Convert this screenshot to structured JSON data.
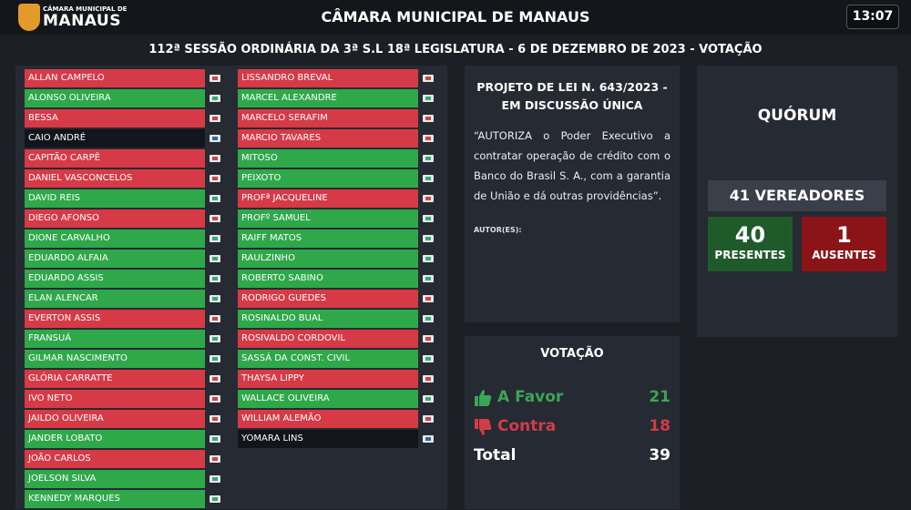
{
  "header": {
    "logo_small": "CÂMARA MUNICIPAL DE",
    "logo_big": "MANAUS",
    "title": "CÂMARA MUNICIPAL DE MANAUS",
    "clock": "13:07"
  },
  "session": {
    "title": "112ª SESSÃO ORDINÁRIA DA 3ª S.L 18ª LEGISLATURA - 6 DE DEZEMBRO DE 2023 - VOTAÇÃO"
  },
  "colors": {
    "red": "#d63a47",
    "green": "#2fa84a",
    "dark": "#12151b"
  },
  "councilors_left": [
    {
      "name": "ALLAN CAMPELO",
      "status": "red"
    },
    {
      "name": "ALONSO OLIVEIRA",
      "status": "green"
    },
    {
      "name": "BESSA",
      "status": "red"
    },
    {
      "name": "CAIO ANDRÉ",
      "status": "dark"
    },
    {
      "name": "CAPITÃO CARPÊ",
      "status": "red"
    },
    {
      "name": "DANIEL VASCONCELOS",
      "status": "red"
    },
    {
      "name": "DAVID REIS",
      "status": "green"
    },
    {
      "name": "DIEGO AFONSO",
      "status": "red"
    },
    {
      "name": "DIONE CARVALHO",
      "status": "green"
    },
    {
      "name": "EDUARDO ALFAIA",
      "status": "green"
    },
    {
      "name": "EDUARDO ASSIS",
      "status": "green"
    },
    {
      "name": "ELAN ALENCAR",
      "status": "green"
    },
    {
      "name": "EVERTON ASSIS",
      "status": "red"
    },
    {
      "name": "FRANSUÁ",
      "status": "green"
    },
    {
      "name": "GILMAR NASCIMENTO",
      "status": "green"
    },
    {
      "name": "GLÓRIA CARRATTE",
      "status": "red"
    },
    {
      "name": "IVO NETO",
      "status": "red"
    },
    {
      "name": "JAILDO OLIVEIRA",
      "status": "red"
    },
    {
      "name": "JANDER LOBATO",
      "status": "green"
    },
    {
      "name": "JOÃO CARLOS",
      "status": "red"
    },
    {
      "name": "JOELSON SILVA",
      "status": "green"
    },
    {
      "name": "KENNEDY MARQUES",
      "status": "green"
    }
  ],
  "councilors_right": [
    {
      "name": "LISSANDRO BREVAL",
      "status": "red"
    },
    {
      "name": "MARCEL ALEXANDRE",
      "status": "green"
    },
    {
      "name": "MARCELO SERAFIM",
      "status": "red"
    },
    {
      "name": "MARCIO TAVARES",
      "status": "red"
    },
    {
      "name": "MITOSO",
      "status": "green"
    },
    {
      "name": "PEIXOTO",
      "status": "green"
    },
    {
      "name": "PROFª JACQUELINE",
      "status": "red"
    },
    {
      "name": "PROFº SAMUEL",
      "status": "green"
    },
    {
      "name": "RAIFF MATOS",
      "status": "green"
    },
    {
      "name": "RAULZINHO",
      "status": "green"
    },
    {
      "name": "ROBERTO SABINO",
      "status": "green"
    },
    {
      "name": "RODRIGO GUEDES",
      "status": "red"
    },
    {
      "name": "ROSINALDO BUAL",
      "status": "green"
    },
    {
      "name": "ROSIVALDO CORDOVIL",
      "status": "red"
    },
    {
      "name": "SASSÁ DA CONST. CIVIL",
      "status": "green"
    },
    {
      "name": "THAYSA LIPPY",
      "status": "red"
    },
    {
      "name": "WALLACE OLIVEIRA",
      "status": "green"
    },
    {
      "name": "WILLIAM ALEMÃO",
      "status": "red"
    },
    {
      "name": "YOMARA LINS",
      "status": "dark"
    }
  ],
  "bill": {
    "title_line1": "PROJETO DE LEI N. 643/2023 -",
    "title_line2": "EM DISCUSSÃO ÚNICA",
    "text": "“AUTORIZA o Poder Executivo a contratar operação de crédito com o Banco do Brasil S. A., com a garantia de União e dá outras providências”.",
    "author_label": "AUTOR(ES):"
  },
  "quorum": {
    "title": "QUÓRUM",
    "vereadores": "41 VEREADORES",
    "present_count": "40",
    "present_label": "PRESENTES",
    "absent_count": "1",
    "absent_label": "AUSENTES"
  },
  "vote": {
    "title": "VOTAÇÃO",
    "favor_label": "A Favor",
    "favor_value": "21",
    "contra_label": "Contra",
    "contra_value": "18",
    "total_label": "Total",
    "total_value": "39"
  }
}
